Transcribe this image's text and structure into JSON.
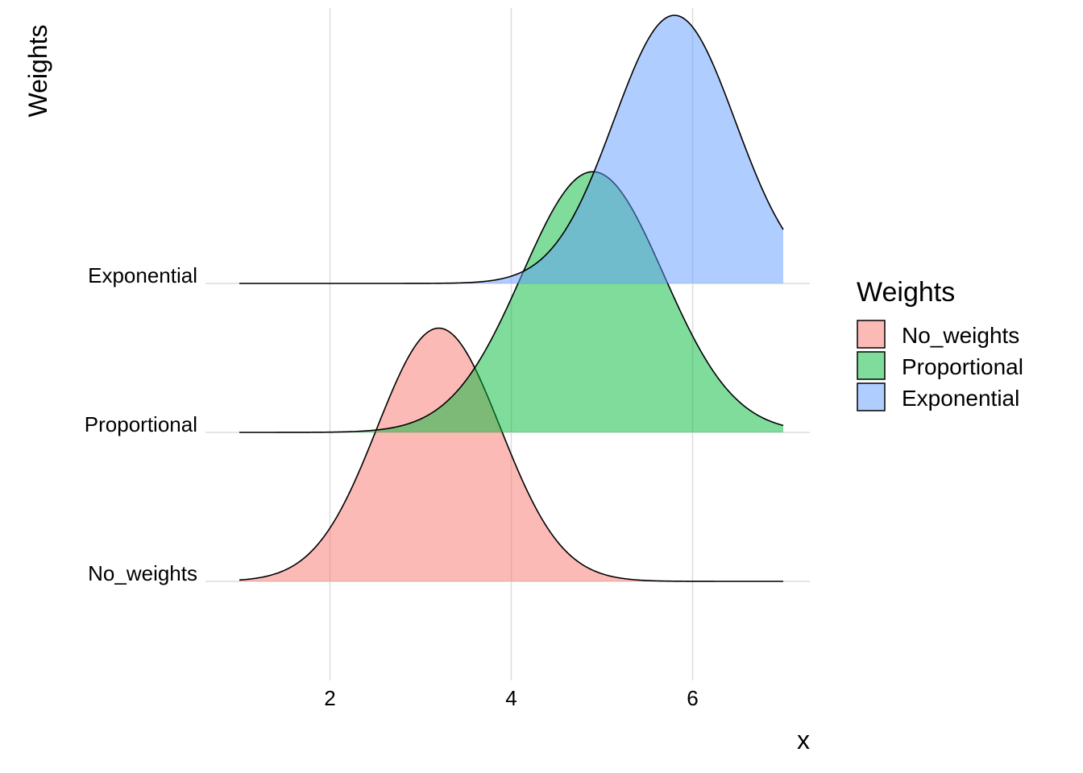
{
  "chart_data": {
    "type": "area",
    "subtype": "ridgeline-density",
    "xlabel": "x",
    "ylabel": "Weights",
    "xlim": [
      1,
      7
    ],
    "x_ticks": [
      "2",
      "4",
      "6"
    ],
    "x_tick_values": [
      2,
      4,
      6
    ],
    "grid": true,
    "legend": {
      "title": "Weights",
      "placement": "right",
      "entries": [
        "No_weights",
        "Proportional",
        "Exponential"
      ]
    },
    "series": [
      {
        "name": "No_weights",
        "color": "#F8766D",
        "mean": 3.2,
        "sd": 0.68,
        "peak_height": 1.7
      },
      {
        "name": "Proportional",
        "color": "#00BA38",
        "mean": 4.9,
        "sd": 0.78,
        "peak_height": 1.75
      },
      {
        "name": "Exponential",
        "color": "#619CFF",
        "mean": 5.8,
        "sd": 0.67,
        "peak_height": 1.8
      }
    ]
  }
}
